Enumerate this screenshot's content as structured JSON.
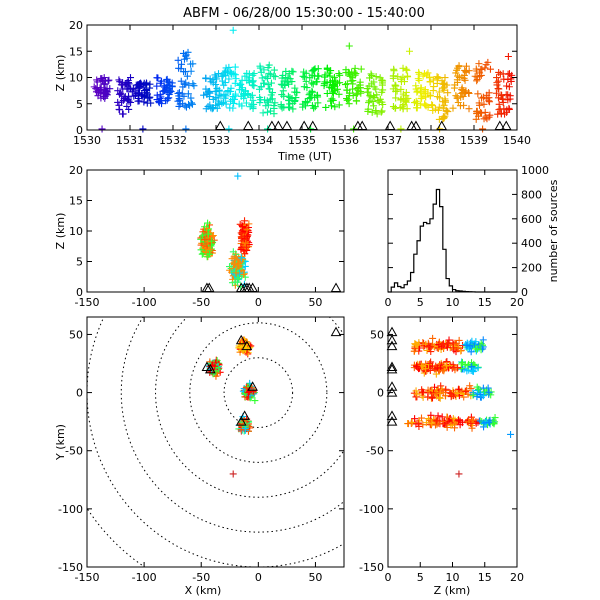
{
  "title": "ABFM - 06/28/00 15:30:00 - 15:40:00",
  "chart_data": [
    {
      "id": "time_height",
      "type": "scatter",
      "xlabel": "Time (UT)",
      "ylabel": "Z (km)",
      "xlim": [
        1530,
        1540
      ],
      "ylim": [
        0,
        20
      ],
      "xticks": [
        1530,
        1531,
        1532,
        1533,
        1534,
        1535,
        1536,
        1537,
        1538,
        1539,
        1540
      ],
      "yticks": [
        0,
        5,
        10,
        15,
        20
      ],
      "color_by": "time (purple to red)",
      "clusters": [
        {
          "t": 1530.35,
          "z_min": 6,
          "z_max": 10
        },
        {
          "t": 1530.9,
          "z_min": 3,
          "z_max": 10
        },
        {
          "t": 1531.3,
          "z_min": 5,
          "z_max": 9
        },
        {
          "t": 1531.8,
          "z_min": 5,
          "z_max": 10
        },
        {
          "t": 1532.3,
          "z_min": 4,
          "z_max": 15
        },
        {
          "t": 1532.9,
          "z_min": 4,
          "z_max": 11
        },
        {
          "t": 1533.3,
          "z_min": 4,
          "z_max": 12
        },
        {
          "t": 1533.7,
          "z_min": 4,
          "z_max": 11
        },
        {
          "t": 1534.2,
          "z_min": 3,
          "z_max": 13
        },
        {
          "t": 1534.7,
          "z_min": 4,
          "z_max": 12
        },
        {
          "t": 1535.2,
          "z_min": 4,
          "z_max": 12
        },
        {
          "t": 1535.7,
          "z_min": 4,
          "z_max": 12
        },
        {
          "t": 1536.2,
          "z_min": 5,
          "z_max": 12
        },
        {
          "t": 1536.7,
          "z_min": 3,
          "z_max": 11
        },
        {
          "t": 1537.3,
          "z_min": 4,
          "z_max": 12
        },
        {
          "t": 1537.8,
          "z_min": 4,
          "z_max": 11
        },
        {
          "t": 1538.2,
          "z_min": 2,
          "z_max": 11
        },
        {
          "t": 1538.7,
          "z_min": 4,
          "z_max": 13
        },
        {
          "t": 1539.2,
          "z_min": 2,
          "z_max": 13
        },
        {
          "t": 1539.7,
          "z_min": 3,
          "z_max": 11
        }
      ],
      "outliers": [
        {
          "t": 1533.4,
          "z": 19
        },
        {
          "t": 1536.1,
          "z": 16
        },
        {
          "t": 1537.5,
          "z": 15
        },
        {
          "t": 1539.8,
          "z": 14
        }
      ],
      "stations_t": [
        1533.1,
        1533.75,
        1534.3,
        1534.45,
        1534.65,
        1535.05,
        1535.25,
        1536.3,
        1536.4,
        1537.05,
        1537.55,
        1537.65,
        1538.25,
        1539.6,
        1539.75
      ]
    },
    {
      "id": "x_z",
      "type": "scatter",
      "xlabel": "",
      "ylabel": "Z (km)",
      "xlim": [
        -150,
        75
      ],
      "ylim": [
        0,
        20
      ],
      "xticks": [
        -150,
        -100,
        -50,
        0,
        50
      ],
      "yticks": [
        0,
        5,
        10,
        15,
        20
      ],
      "outlier": {
        "x": -18,
        "z": 19
      },
      "stations_x": [
        -45,
        -43,
        -15,
        -12,
        -10,
        -8,
        -5,
        68
      ]
    },
    {
      "id": "histogram",
      "type": "bar",
      "xlabel": "",
      "ylabel": "number of sources",
      "xlim": [
        0,
        20
      ],
      "ylim": [
        0,
        1000
      ],
      "xticks": [
        0,
        5,
        10,
        15,
        20
      ],
      "yticks": [
        0,
        200,
        400,
        600,
        800,
        1000
      ],
      "bin_width_km": 0.5,
      "counts": [
        0,
        40,
        75,
        45,
        35,
        60,
        90,
        160,
        310,
        420,
        540,
        570,
        560,
        600,
        720,
        840,
        700,
        350,
        110,
        50,
        20,
        10,
        8,
        5,
        3,
        2,
        1,
        0,
        0,
        0,
        0,
        0,
        0,
        0,
        0,
        0,
        0,
        0,
        0,
        0
      ]
    },
    {
      "id": "plan_view",
      "type": "scatter",
      "xlabel": "X (km)",
      "ylabel": "Y (km)",
      "xlim": [
        -150,
        75
      ],
      "ylim": [
        -150,
        65
      ],
      "xticks": [
        -150,
        -100,
        -50,
        0,
        50
      ],
      "yticks": [
        -150,
        -100,
        -50,
        0,
        50
      ],
      "range_rings_km": [
        30,
        60,
        90,
        120,
        150,
        180
      ],
      "lobes": [
        {
          "x": -12,
          "y": 40
        },
        {
          "x": -38,
          "y": 22
        },
        {
          "x": -8,
          "y": 0
        },
        {
          "x": -12,
          "y": -28
        }
      ],
      "outlier": {
        "x": -22,
        "y": -70
      },
      "stations": [
        {
          "x": -15,
          "y": 45
        },
        {
          "x": -10,
          "y": 40
        },
        {
          "x": -45,
          "y": 22
        },
        {
          "x": -42,
          "y": 20
        },
        {
          "x": -15,
          "y": -25
        },
        {
          "x": -12,
          "y": -20
        },
        {
          "x": -5,
          "y": 5
        },
        {
          "x": 68,
          "y": 52
        }
      ]
    },
    {
      "id": "z_y",
      "type": "scatter",
      "xlabel": "Z (km)",
      "ylabel": "",
      "xlim": [
        0,
        20
      ],
      "ylim": [
        -150,
        65
      ],
      "xticks": [
        0,
        5,
        10,
        15,
        20
      ],
      "yticks": [
        -150,
        -100,
        -50,
        0,
        50
      ],
      "bands": [
        {
          "y": 40,
          "z_min": 4,
          "z_max": 15
        },
        {
          "y": 22,
          "z_min": 4,
          "z_max": 14
        },
        {
          "y": 0,
          "z_min": 4,
          "z_max": 16
        },
        {
          "y": -25,
          "z_min": 3,
          "z_max": 17
        }
      ],
      "outliers": [
        {
          "z": 11,
          "y": -70
        },
        {
          "z": 19,
          "y": -36
        }
      ],
      "stations_y": [
        52,
        45,
        40,
        22,
        20,
        5,
        0,
        -20,
        -25
      ]
    }
  ]
}
